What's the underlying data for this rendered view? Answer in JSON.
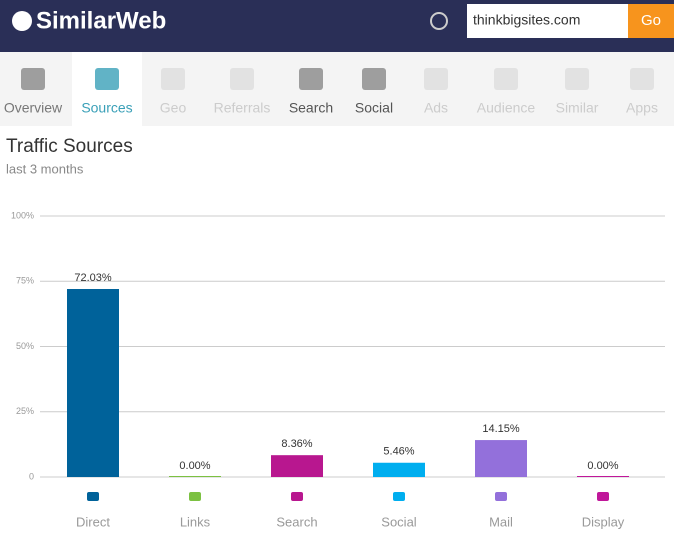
{
  "header": {
    "logo": "SimilarWeb",
    "search_value": "thinkbigsites.com",
    "button": "Go"
  },
  "nav": {
    "tabs": [
      "Overview",
      "Sources",
      "Geo",
      "Referrals",
      "Search",
      "Social",
      "Ads",
      "Audience",
      "Similar",
      "Apps"
    ]
  },
  "chart_data": {
    "type": "bar",
    "title": "Traffic Sources",
    "subtitle": "last 3 months",
    "categories": [
      "Direct",
      "Links",
      "Search",
      "Social",
      "Mail",
      "Display"
    ],
    "values": [
      72.03,
      0,
      8.36,
      5.46,
      14.15,
      0
    ],
    "value_labels": [
      "72.03%",
      "0.00%",
      "8.36%",
      "5.46%",
      "14.15%",
      "0.00%"
    ],
    "colors": [
      "#00629a",
      "#7cc142",
      "#b8178f",
      "#00aeef",
      "#9370db",
      "#c0179a"
    ],
    "ylim": [
      0,
      100
    ],
    "yticks": [
      0,
      {
        "value": 25,
        "label": "25%"
      },
      {
        "value": 50,
        "label": "50%"
      },
      {
        "value": 75,
        "label": "75%"
      },
      {
        "value": 100,
        "label": "100%"
      }
    ],
    "grid": true
  }
}
